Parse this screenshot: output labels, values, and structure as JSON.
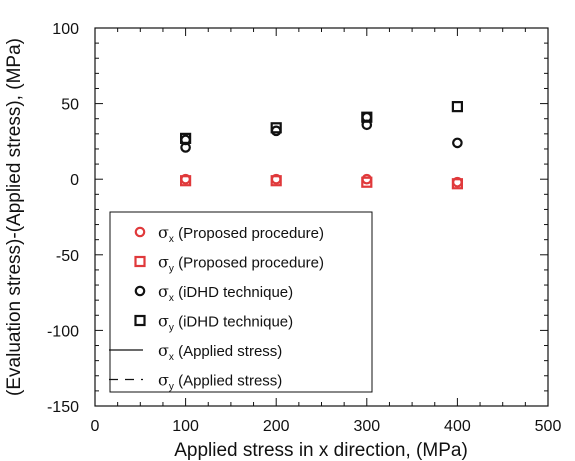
{
  "chart_data": {
    "type": "scatter",
    "xlabel": "Applied stress in x direction, (MPa)",
    "ylabel": "(Evaluation stress)-(Applied stress), (MPa)",
    "xlim": [
      0,
      500
    ],
    "ylim": [
      -150,
      100
    ],
    "xticks": [
      "0",
      "100",
      "200",
      "300",
      "400",
      "500"
    ],
    "yticks": [
      "100",
      "50",
      "0",
      "-50",
      "-100",
      "-150"
    ],
    "grid": false,
    "legend_position": "bottom-left",
    "series": [
      {
        "symbol": "σ",
        "subscript": "x",
        "label": " (Proposed procedure)",
        "marker": "circle",
        "color": "#e0393b",
        "x": [
          100,
          200,
          300,
          400
        ],
        "y": [
          0,
          0,
          0,
          -2
        ]
      },
      {
        "symbol": "σ",
        "subscript": "y",
        "label": " (Proposed procedure)",
        "marker": "square",
        "color": "#e0393b",
        "x": [
          100,
          200,
          300,
          400
        ],
        "y": [
          -1,
          -1,
          -2,
          -3
        ]
      },
      {
        "symbol": "σ",
        "subscript": "x",
        "label": " (iDHD technique)",
        "marker": "circle",
        "color": "#111111",
        "x": [
          100,
          100,
          200,
          300,
          300,
          400
        ],
        "y": [
          26,
          21,
          32,
          41,
          36,
          24
        ]
      },
      {
        "symbol": "σ",
        "subscript": "y",
        "label": " (iDHD technique)",
        "marker": "square",
        "color": "#111111",
        "x": [
          100,
          200,
          300,
          400
        ],
        "y": [
          27,
          34,
          41,
          48
        ]
      },
      {
        "symbol": "σ",
        "subscript": "x",
        "label": " (Applied stress)",
        "marker": "solid-line",
        "color": "#111111",
        "x": [],
        "y": []
      },
      {
        "symbol": "σ",
        "subscript": "y",
        "label": " (Applied stress)",
        "marker": "dashed-line",
        "color": "#111111",
        "x": [],
        "y": []
      }
    ]
  }
}
